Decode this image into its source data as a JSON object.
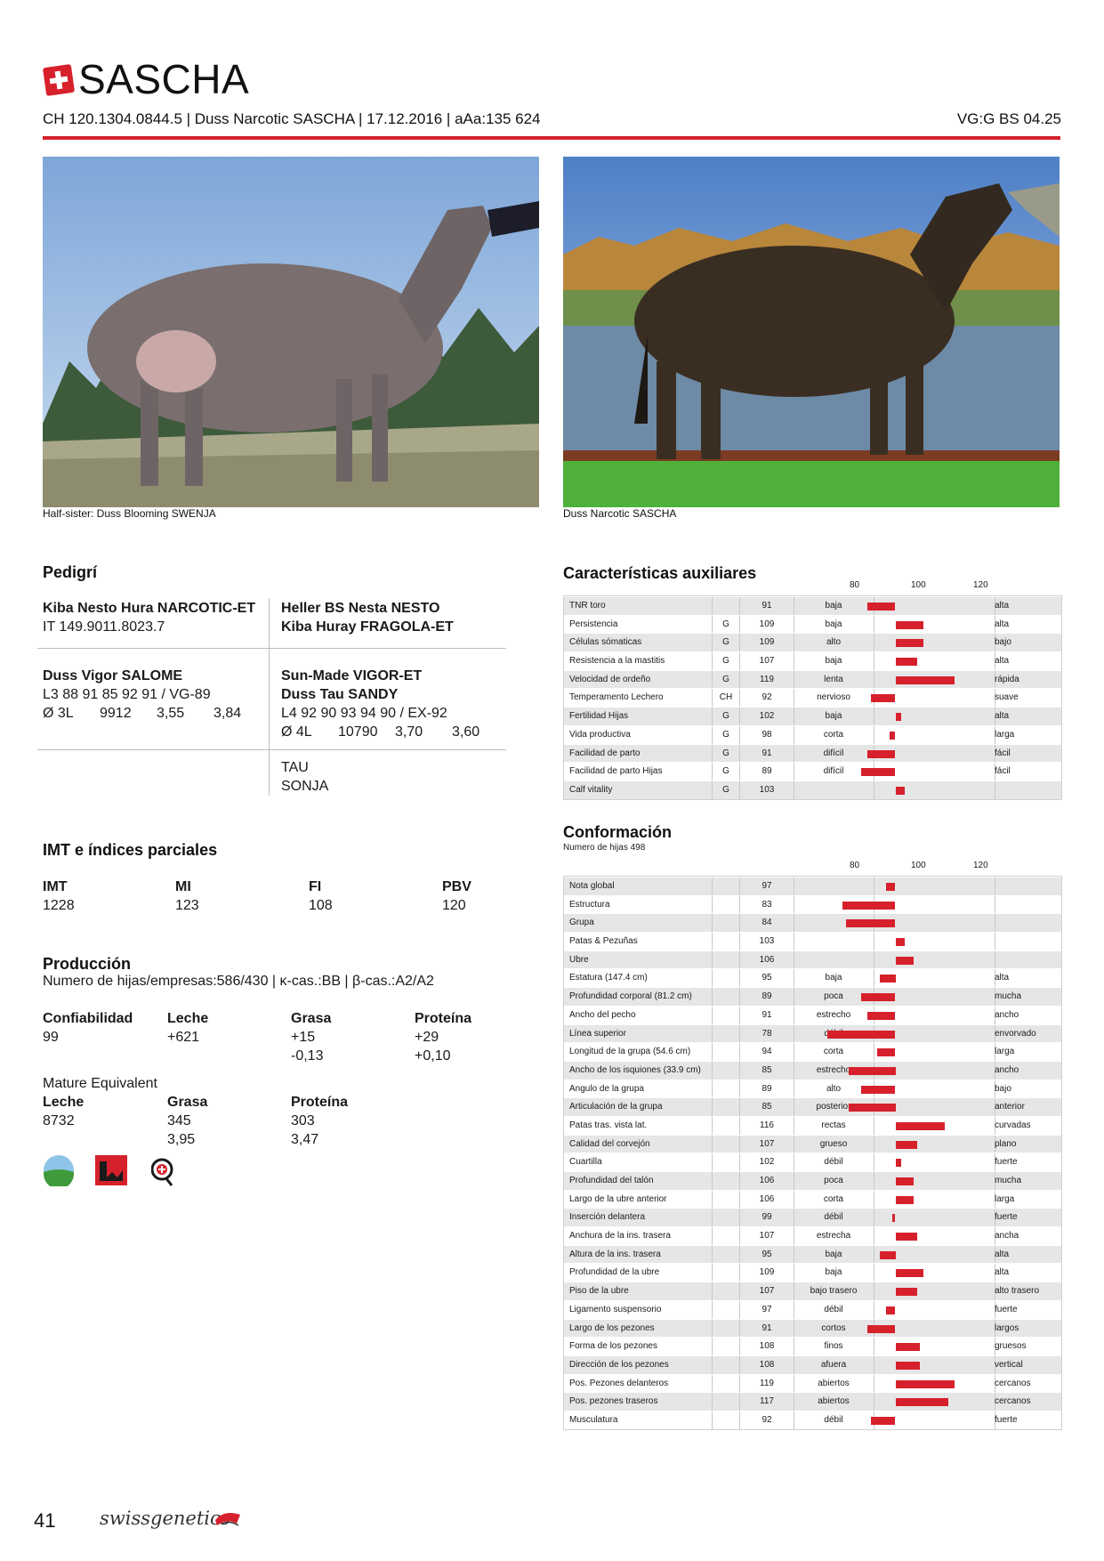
{
  "header": {
    "title": "SASCHA",
    "id_line": "CH 120.1304.0844.5 | Duss Narcotic SASCHA | 17.12.2016 | aAa:135 624",
    "vg": "VG:G BS 04.25"
  },
  "photos": {
    "left_caption": "Half-sister: Duss Blooming SWENJA",
    "right_caption": "Duss Narcotic SASCHA"
  },
  "pedigree": {
    "heading": "Pedigrí",
    "sire": {
      "name": "Kiba Nesto Hura NARCOTIC-ET",
      "id": "IT 149.9011.8023.7"
    },
    "sire_parents": {
      "sire": "Heller BS Nesta NESTO",
      "dam": "Kiba Huray FRAGOLA-ET"
    },
    "dam": {
      "name": "Duss Vigor SALOME",
      "line1": "L3 88 91 85 92 91 / VG-89",
      "avg": "Ø 3L",
      "milk": "9912",
      "fat": "3,55",
      "protein": "3,84"
    },
    "dam_sire": {
      "name": "Sun-Made VIGOR-ET"
    },
    "dam_dam": {
      "name": "Duss Tau SANDY",
      "line1": "L4 92 90 93 94 90 / EX-92",
      "avg": "Ø 4L",
      "milk": "10790",
      "fat": "3,70",
      "protein": "3,60"
    },
    "dam_dam_parents": {
      "sire": "TAU",
      "dam": "SONJA"
    }
  },
  "imt": {
    "heading": "IMT e índices parciales",
    "labels": [
      "IMT",
      "MI",
      "FI",
      "PBV"
    ],
    "values": [
      "1228",
      "123",
      "108",
      "120"
    ]
  },
  "produccion": {
    "heading": "Producción",
    "subline": "Numero de hijas/empresas:586/430 | κ-cas.:BB | β-cas.:A2/A2",
    "labels": [
      "Confiabilidad",
      "Leche",
      "Grasa",
      "Proteína"
    ],
    "values": [
      "99",
      "+621",
      "+15",
      "+29"
    ],
    "values2": [
      "",
      "",
      "-0,13",
      "+0,10"
    ],
    "mature_title": "Mature Equivalent",
    "mature_labels": [
      "Leche",
      "Grasa",
      "Proteína"
    ],
    "mature_values": [
      "8732",
      "345",
      "303"
    ],
    "mature_values2": [
      "",
      "3,95",
      "3,47"
    ]
  },
  "aux": {
    "heading": "Características auxiliares",
    "scale": [
      "80",
      "100",
      "120"
    ],
    "rows": [
      {
        "name": "TNR toro",
        "type": "",
        "value": 91,
        "low": "baja",
        "high": "alta"
      },
      {
        "name": "Persistencia",
        "type": "G",
        "value": 109,
        "low": "baja",
        "high": "alta"
      },
      {
        "name": "Células sómaticas",
        "type": "G",
        "value": 109,
        "low": "alto",
        "high": "bajo"
      },
      {
        "name": "Resistencia a la mastitis",
        "type": "G",
        "value": 107,
        "low": "baja",
        "high": "alta"
      },
      {
        "name": "Velocidad de ordeño",
        "type": "G",
        "value": 119,
        "low": "lenta",
        "high": "rápida"
      },
      {
        "name": "Temperamento Lechero",
        "type": "CH",
        "value": 92,
        "low": "nervioso",
        "high": "suave"
      },
      {
        "name": "Fertilidad Hijas",
        "type": "G",
        "value": 102,
        "low": "baja",
        "high": "alta"
      },
      {
        "name": "Vida productiva",
        "type": "G",
        "value": 98,
        "low": "corta",
        "high": "larga"
      },
      {
        "name": "Facilidad de parto",
        "type": "G",
        "value": 91,
        "low": "difícil",
        "high": "fácil"
      },
      {
        "name": "Facilidad de parto Hijas",
        "type": "G",
        "value": 89,
        "low": "difícil",
        "high": "fácil"
      },
      {
        "name": "Calf vitality",
        "type": "G",
        "value": 103,
        "low": "",
        "high": ""
      }
    ]
  },
  "conf": {
    "heading": "Conformación",
    "subheading": "Numero de hijas 498",
    "scale": [
      "80",
      "100",
      "120"
    ],
    "rows": [
      {
        "name": "Nota global",
        "value": 97,
        "low": "",
        "high": ""
      },
      {
        "name": "Estructura",
        "value": 83,
        "low": "",
        "high": ""
      },
      {
        "name": "Grupa",
        "value": 84,
        "low": "",
        "high": ""
      },
      {
        "name": "Patas & Pezuñas",
        "value": 103,
        "low": "",
        "high": ""
      },
      {
        "name": "Ubre",
        "value": 106,
        "low": "",
        "high": ""
      },
      {
        "name": "Estatura (147.4 cm)",
        "value": 95,
        "low": "baja",
        "high": "alta"
      },
      {
        "name": "Profundidad corporal (81.2 cm)",
        "value": 89,
        "low": "poca",
        "high": "mucha"
      },
      {
        "name": "Ancho del pecho",
        "value": 91,
        "low": "estrecho",
        "high": "ancho"
      },
      {
        "name": "Línea superior",
        "value": 78,
        "low": "débil",
        "high": "envorvado"
      },
      {
        "name": "Longitud de la grupa (54.6 cm)",
        "value": 94,
        "low": "corta",
        "high": "larga"
      },
      {
        "name": "Ancho de los isquiones (33.9 cm)",
        "value": 85,
        "low": "estrecho",
        "high": "ancho"
      },
      {
        "name": "Angulo de la grupa",
        "value": 89,
        "low": "alto",
        "high": "bajo"
      },
      {
        "name": "Articulación de la grupa",
        "value": 85,
        "low": "posterior",
        "high": "anterior"
      },
      {
        "name": "Patas tras. vista lat.",
        "value": 116,
        "low": "rectas",
        "high": "curvadas"
      },
      {
        "name": "Calidad del corvejón",
        "value": 107,
        "low": "grueso",
        "high": "plano"
      },
      {
        "name": "Cuartilla",
        "value": 102,
        "low": "débil",
        "high": "fuerte"
      },
      {
        "name": "Profundidad del talón",
        "value": 106,
        "low": "poca",
        "high": "mucha"
      },
      {
        "name": "Largo de la ubre anterior",
        "value": 106,
        "low": "corta",
        "high": "larga"
      },
      {
        "name": "Inserción delantera",
        "value": 99,
        "low": "débil",
        "high": "fuerte"
      },
      {
        "name": "Anchura de la ins. trasera",
        "value": 107,
        "low": "estrecha",
        "high": "ancha"
      },
      {
        "name": "Altura de la ins. trasera",
        "value": 95,
        "low": "baja",
        "high": "alta"
      },
      {
        "name": "Profundidad de la ubre",
        "value": 109,
        "low": "baja",
        "high": "alta"
      },
      {
        "name": "Piso de la ubre",
        "value": 107,
        "low": "bajo trasero",
        "high": "alto trasero"
      },
      {
        "name": "Ligamento suspensorio",
        "value": 97,
        "low": "débil",
        "high": "fuerte"
      },
      {
        "name": "Largo de los pezones",
        "value": 91,
        "low": "cortos",
        "high": "largos"
      },
      {
        "name": "Forma de los pezones",
        "value": 108,
        "low": "finos",
        "high": "gruesos"
      },
      {
        "name": "Dirección de los pezones",
        "value": 108,
        "low": "afuera",
        "high": "vertical"
      },
      {
        "name": "Pos. Pezones delanteros",
        "value": 119,
        "low": "abiertos",
        "high": "cercanos"
      },
      {
        "name": "Pos. pezones traseros",
        "value": 117,
        "low": "abiertos",
        "high": "cercanos"
      },
      {
        "name": "Musculatura",
        "value": 92,
        "low": "débil",
        "high": "fuerte"
      }
    ]
  },
  "footer": {
    "page": "41",
    "brand": "swissgenetics"
  },
  "colors": {
    "accent": "#d6212c",
    "row_alt": "#e6e6e6"
  },
  "icons": [
    "swiss-flag-icon",
    "farm-logo-icon",
    "breeder-logo-icon",
    "quality-badge-icon",
    "swissgenetics-logo-icon"
  ]
}
